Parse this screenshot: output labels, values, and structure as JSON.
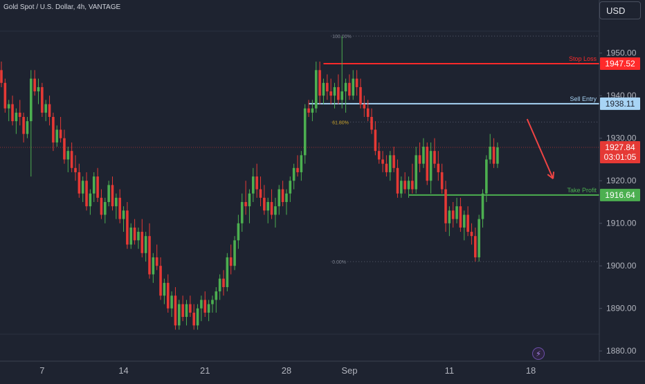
{
  "header": {
    "title": "Gold Spot / U.S. Dollar, 4h, VANTAGE",
    "currency": "USD"
  },
  "colors": {
    "background": "#1e2330",
    "up": "#4caf50",
    "down": "#e53935",
    "stop": "#ff2a2a",
    "entry": "#a8d4f5",
    "profit": "#4caf50",
    "fib": "#c9a227"
  },
  "chart_data": {
    "type": "candlestick",
    "title": "Gold Spot / U.S. Dollar, 4h, VANTAGE",
    "ylim": [
      1877.6,
      1957.6
    ],
    "y_ticks": [
      1880,
      1890,
      1900,
      1910,
      1920,
      1930,
      1940,
      1950
    ],
    "y_tick_labels": [
      "1880.00",
      "1890.00",
      "1900.00",
      "1910.00",
      "1920.00",
      "1930.00",
      "1940.00",
      "1950.00"
    ],
    "x_ticks": [
      {
        "label": "7",
        "index": 11
      },
      {
        "label": "14",
        "index": 33
      },
      {
        "label": "21",
        "index": 55
      },
      {
        "label": "28",
        "index": 77
      },
      {
        "label": "Sep",
        "index": 94
      },
      {
        "label": "11",
        "index": 121
      },
      {
        "label": "18",
        "index": 143
      }
    ],
    "levels": [
      {
        "name": "Stop Loss",
        "value": 1947.52,
        "label": "1947.52",
        "color": "#ff2a2a",
        "from_index": 87
      },
      {
        "name": "Sell Entry",
        "value": 1938.11,
        "label": "1938.11",
        "color": "#a8d4f5",
        "from_index": 83
      },
      {
        "name": "Take Profit",
        "value": 1916.64,
        "label": "1916.64",
        "color": "#4caf50",
        "from_index": 110
      }
    ],
    "fib": [
      {
        "label": "100.00%",
        "value": 1954.0
      },
      {
        "label": "61.80%",
        "value": 1933.8
      },
      {
        "label": "0.00%",
        "value": 1901.0
      }
    ],
    "last_price": {
      "value": 1927.84,
      "label": "1927.84",
      "countdown": "03:01:05"
    },
    "ohlc": [
      [
        1946,
        1948,
        1942,
        1943
      ],
      [
        1943,
        1944,
        1936,
        1937
      ],
      [
        1937,
        1939,
        1934,
        1938
      ],
      [
        1938,
        1940,
        1933,
        1934
      ],
      [
        1934,
        1937,
        1931,
        1936
      ],
      [
        1936,
        1939,
        1933,
        1935
      ],
      [
        1935,
        1936,
        1929,
        1931
      ],
      [
        1931,
        1935,
        1930,
        1934
      ],
      [
        1934,
        1946,
        1921,
        1944
      ],
      [
        1944,
        1946,
        1940,
        1941
      ],
      [
        1941,
        1944,
        1938,
        1942
      ],
      [
        1942,
        1943,
        1935,
        1936
      ],
      [
        1936,
        1939,
        1934,
        1938
      ],
      [
        1938,
        1940,
        1933,
        1935
      ],
      [
        1935,
        1936,
        1927,
        1929
      ],
      [
        1929,
        1933,
        1928,
        1932
      ],
      [
        1932,
        1935,
        1929,
        1930
      ],
      [
        1930,
        1932,
        1924,
        1925
      ],
      [
        1925,
        1928,
        1922,
        1927
      ],
      [
        1927,
        1929,
        1922,
        1923
      ],
      [
        1923,
        1926,
        1920,
        1922
      ],
      [
        1922,
        1924,
        1916,
        1917
      ],
      [
        1917,
        1921,
        1915,
        1920
      ],
      [
        1920,
        1922,
        1913,
        1914
      ],
      [
        1914,
        1918,
        1912,
        1917
      ],
      [
        1917,
        1922,
        1915,
        1921
      ],
      [
        1921,
        1923,
        1915,
        1916
      ],
      [
        1916,
        1918,
        1911,
        1912
      ],
      [
        1912,
        1916,
        1910,
        1915
      ],
      [
        1915,
        1920,
        1914,
        1919
      ],
      [
        1919,
        1921,
        1913,
        1914
      ],
      [
        1914,
        1917,
        1911,
        1916
      ],
      [
        1916,
        1918,
        1910,
        1911
      ],
      [
        1911,
        1914,
        1908,
        1913
      ],
      [
        1913,
        1915,
        1904,
        1905
      ],
      [
        1905,
        1910,
        1904,
        1909
      ],
      [
        1909,
        1911,
        1905,
        1906
      ],
      [
        1906,
        1909,
        1904,
        1908
      ],
      [
        1908,
        1911,
        1902,
        1903
      ],
      [
        1903,
        1908,
        1901,
        1907
      ],
      [
        1907,
        1910,
        1897,
        1898
      ],
      [
        1898,
        1903,
        1896,
        1902
      ],
      [
        1902,
        1905,
        1899,
        1900
      ],
      [
        1900,
        1902,
        1892,
        1893
      ],
      [
        1893,
        1897,
        1891,
        1896
      ],
      [
        1896,
        1898,
        1889,
        1890
      ],
      [
        1890,
        1894,
        1888,
        1893
      ],
      [
        1893,
        1895,
        1885,
        1886
      ],
      [
        1886,
        1892,
        1885,
        1891
      ],
      [
        1891,
        1893,
        1887,
        1888
      ],
      [
        1888,
        1892,
        1886,
        1891
      ],
      [
        1891,
        1893,
        1888,
        1889
      ],
      [
        1889,
        1891,
        1885,
        1886
      ],
      [
        1886,
        1891,
        1885,
        1890
      ],
      [
        1890,
        1893,
        1887,
        1892
      ],
      [
        1892,
        1894,
        1888,
        1889
      ],
      [
        1889,
        1892,
        1887,
        1891
      ],
      [
        1891,
        1893,
        1889,
        1892
      ],
      [
        1892,
        1895,
        1889,
        1894
      ],
      [
        1894,
        1898,
        1892,
        1897
      ],
      [
        1897,
        1899,
        1893,
        1895
      ],
      [
        1895,
        1903,
        1894,
        1902
      ],
      [
        1902,
        1905,
        1898,
        1900
      ],
      [
        1900,
        1907,
        1899,
        1906
      ],
      [
        1906,
        1912,
        1904,
        1910
      ],
      [
        1910,
        1917,
        1908,
        1915
      ],
      [
        1915,
        1920,
        1912,
        1914
      ],
      [
        1914,
        1918,
        1910,
        1917
      ],
      [
        1917,
        1923,
        1915,
        1921
      ],
      [
        1921,
        1924,
        1916,
        1918
      ],
      [
        1918,
        1921,
        1914,
        1916
      ],
      [
        1916,
        1919,
        1912,
        1913
      ],
      [
        1913,
        1916,
        1910,
        1915
      ],
      [
        1915,
        1918,
        1911,
        1912
      ],
      [
        1912,
        1916,
        1909,
        1914
      ],
      [
        1914,
        1919,
        1912,
        1918
      ],
      [
        1918,
        1920,
        1914,
        1915
      ],
      [
        1915,
        1918,
        1912,
        1917
      ],
      [
        1917,
        1921,
        1915,
        1920
      ],
      [
        1920,
        1924,
        1918,
        1923
      ],
      [
        1923,
        1926,
        1921,
        1922
      ],
      [
        1922,
        1927,
        1920,
        1926
      ],
      [
        1926,
        1938,
        1924,
        1937
      ],
      [
        1937,
        1939,
        1935,
        1936
      ],
      [
        1936,
        1939,
        1934,
        1937
      ],
      [
        1937,
        1948,
        1936,
        1946
      ],
      [
        1946,
        1948,
        1938,
        1940
      ],
      [
        1940,
        1944,
        1938,
        1943
      ],
      [
        1943,
        1945,
        1939,
        1941
      ],
      [
        1941,
        1944,
        1938,
        1940
      ],
      [
        1940,
        1943,
        1937,
        1942
      ],
      [
        1942,
        1945,
        1938,
        1939
      ],
      [
        1939,
        1954,
        1937,
        1941
      ],
      [
        1941,
        1944,
        1936,
        1943
      ],
      [
        1943,
        1945,
        1939,
        1940
      ],
      [
        1940,
        1946,
        1939,
        1944
      ],
      [
        1944,
        1946,
        1940,
        1942
      ],
      [
        1942,
        1944,
        1937,
        1938
      ],
      [
        1938,
        1940,
        1935,
        1937
      ],
      [
        1937,
        1939,
        1934,
        1935
      ],
      [
        1935,
        1937,
        1931,
        1932
      ],
      [
        1932,
        1934,
        1926,
        1927
      ],
      [
        1927,
        1929,
        1924,
        1925
      ],
      [
        1925,
        1927,
        1922,
        1924
      ],
      [
        1924,
        1926,
        1921,
        1922
      ],
      [
        1922,
        1927,
        1920,
        1926
      ],
      [
        1926,
        1928,
        1922,
        1923
      ],
      [
        1923,
        1925,
        1916,
        1917
      ],
      [
        1917,
        1921,
        1916,
        1920
      ],
      [
        1920,
        1922,
        1917,
        1918
      ],
      [
        1918,
        1921,
        1916,
        1920
      ],
      [
        1920,
        1924,
        1917,
        1918
      ],
      [
        1918,
        1928,
        1917,
        1926
      ],
      [
        1926,
        1929,
        1922,
        1924
      ],
      [
        1924,
        1930,
        1923,
        1928
      ],
      [
        1928,
        1929,
        1919,
        1920
      ],
      [
        1920,
        1929,
        1917,
        1927
      ],
      [
        1927,
        1930,
        1923,
        1924
      ],
      [
        1924,
        1927,
        1920,
        1922
      ],
      [
        1922,
        1924,
        1917,
        1918
      ],
      [
        1918,
        1920,
        1908,
        1910
      ],
      [
        1910,
        1914,
        1907,
        1913
      ],
      [
        1913,
        1915,
        1909,
        1911
      ],
      [
        1911,
        1916,
        1910,
        1914
      ],
      [
        1914,
        1916,
        1908,
        1909
      ],
      [
        1909,
        1913,
        1906,
        1912
      ],
      [
        1912,
        1914,
        1907,
        1908
      ],
      [
        1908,
        1910,
        1905,
        1907
      ],
      [
        1907,
        1909,
        1901,
        1902
      ],
      [
        1902,
        1912,
        1901,
        1911
      ],
      [
        1911,
        1918,
        1909,
        1917
      ],
      [
        1917,
        1926,
        1915,
        1925
      ],
      [
        1925,
        1931,
        1924,
        1928
      ],
      [
        1928,
        1930,
        1923,
        1924
      ],
      [
        1924,
        1929,
        1923,
        1927.84
      ]
    ],
    "annotation_arrow": {
      "from": {
        "index": 142,
        "value": 1934.5
      },
      "to": {
        "index": 149,
        "value": 1920.5
      }
    }
  }
}
